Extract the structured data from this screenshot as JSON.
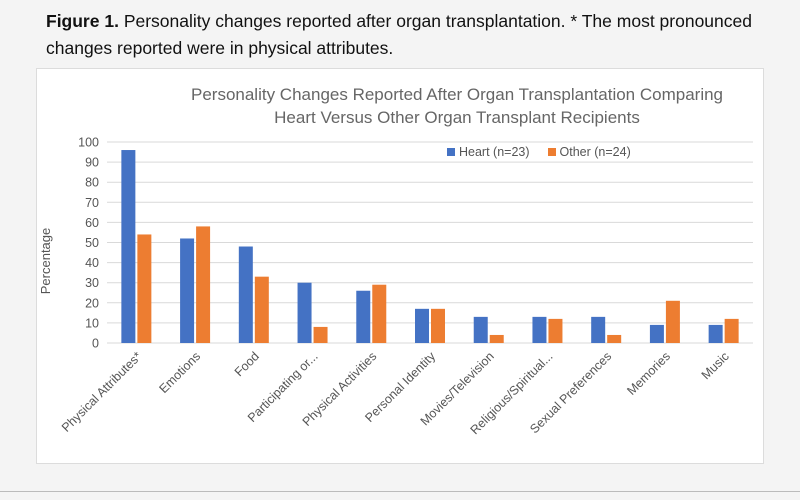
{
  "caption": {
    "label": "Figure 1.",
    "text": "Personality changes reported after organ transplantation. * The most pronounced changes reported were in physical attributes."
  },
  "colors": {
    "heart": "#4472c4",
    "other": "#ed7d31",
    "grid": "#d9d9d9"
  },
  "chart_data": {
    "type": "bar",
    "title_line1": "Personality Changes Reported After Organ Transplantation Comparing",
    "title_line2": "Heart Versus Other Organ Transplant Recipients",
    "xlabel": "",
    "ylabel": "Percentage",
    "ylim": [
      0,
      100
    ],
    "yticks": [
      0,
      10,
      20,
      30,
      40,
      50,
      60,
      70,
      80,
      90,
      100
    ],
    "grid": true,
    "legend_position": "top-right",
    "categories": [
      "Physical Attributes*",
      "Emotions",
      "Food",
      "Participating or...",
      "Physical Activities",
      "Personal Identity",
      "Movies/Television",
      "Religious/Spiritual...",
      "Sexual Preferences",
      "Memories",
      "Music"
    ],
    "series": [
      {
        "name": "Heart (n=23)",
        "values": [
          96,
          52,
          48,
          30,
          26,
          17,
          13,
          13,
          13,
          9,
          9
        ]
      },
      {
        "name": "Other (n=24)",
        "values": [
          54,
          58,
          33,
          8,
          29,
          17,
          4,
          12,
          4,
          21,
          12
        ]
      }
    ]
  }
}
